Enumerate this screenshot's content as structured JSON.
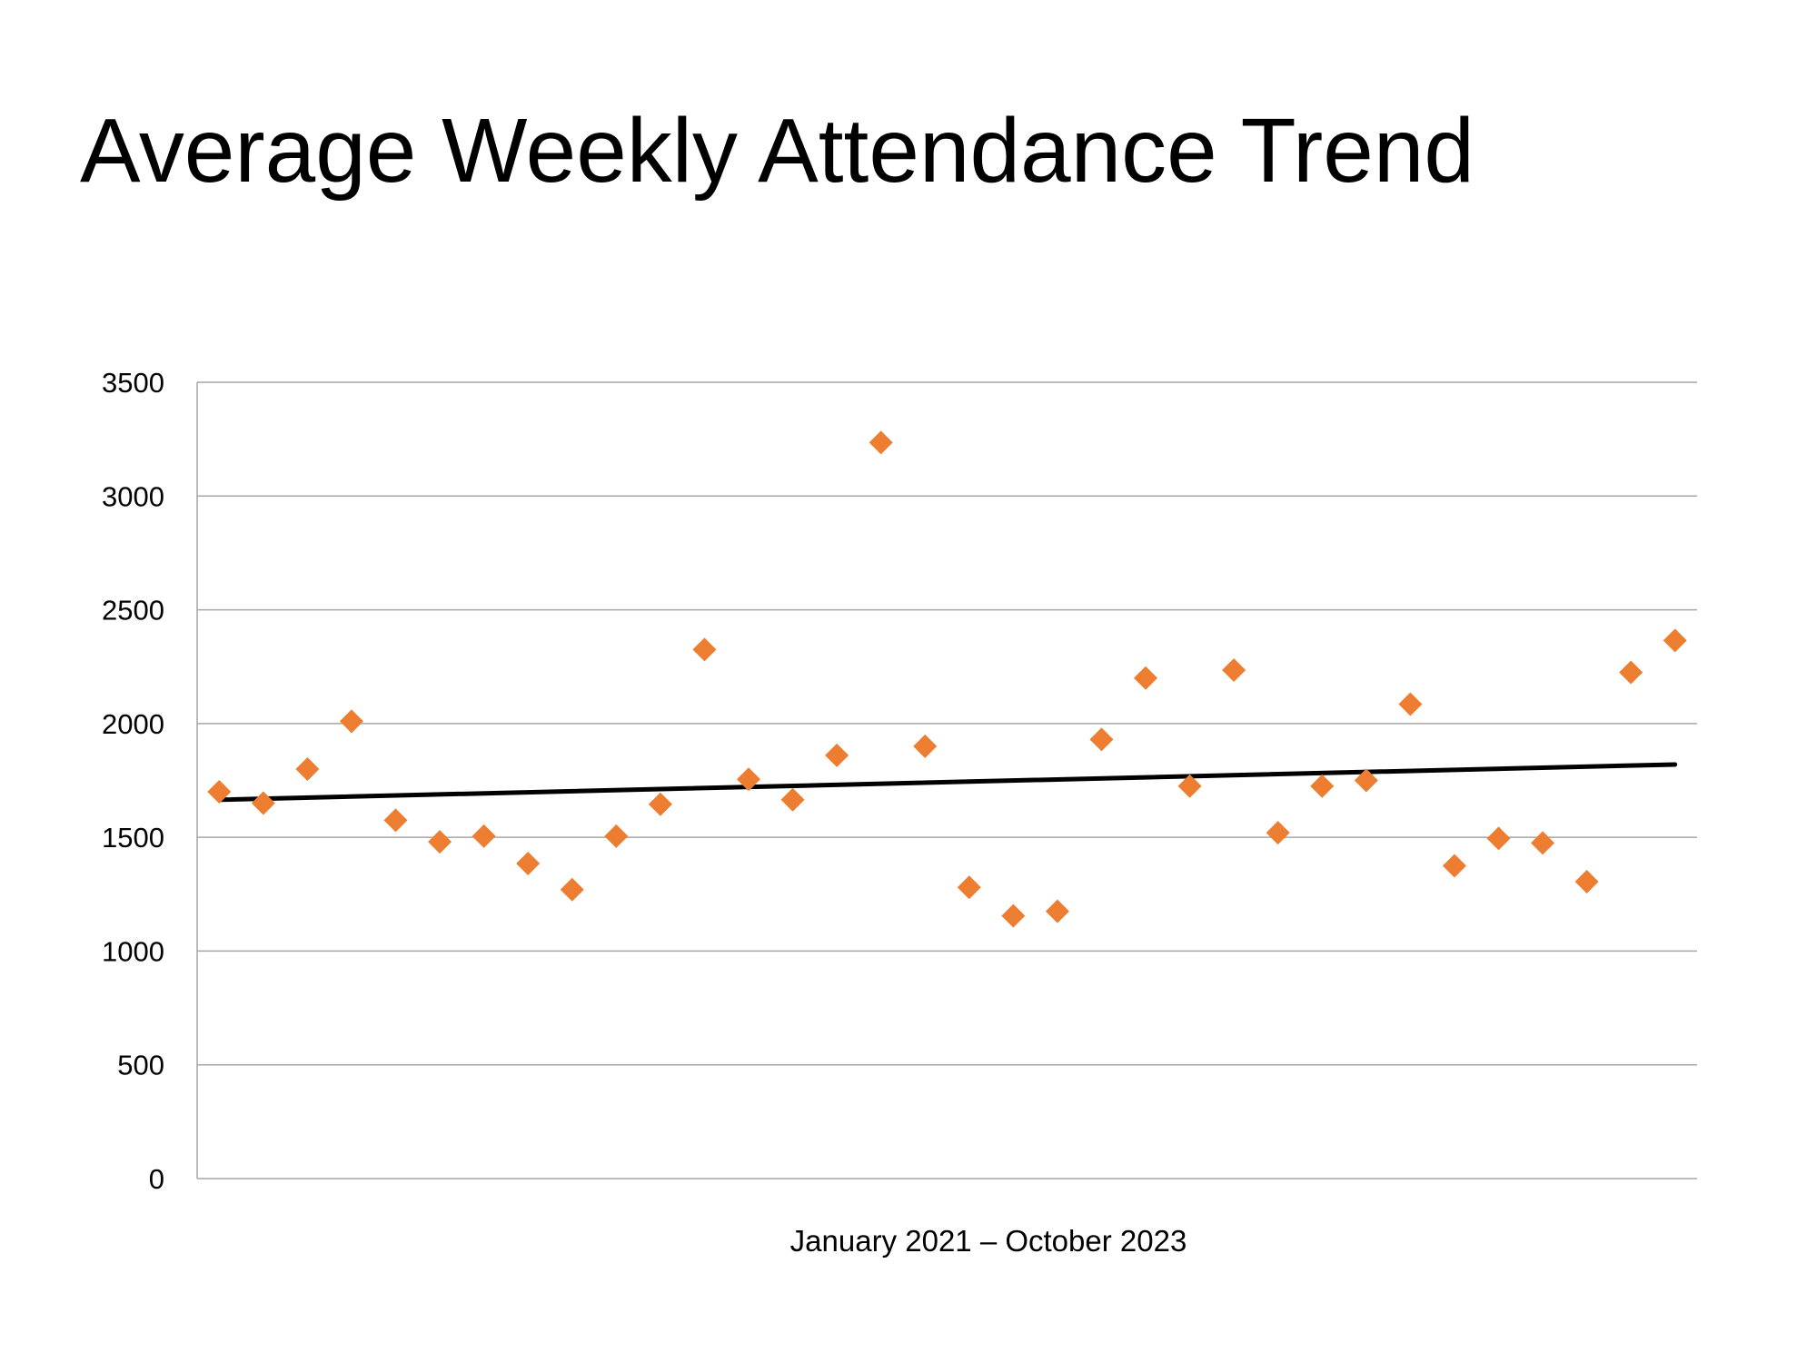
{
  "chart_data": {
    "type": "scatter",
    "title": "Average Weekly Attendance Trend",
    "xlabel": "January 2021 – October 2023",
    "ylabel": "",
    "ylim": [
      0,
      3500
    ],
    "xlim": [
      0.5,
      34.5
    ],
    "yticks": [
      "0",
      "500",
      "1000",
      "1500",
      "2000",
      "2500",
      "3000",
      "3500"
    ],
    "grid": true,
    "legend": "none",
    "series": [
      {
        "name": "Average Weekly Attendance",
        "marker": "diamond",
        "color": "#ED7D31",
        "x": [
          1,
          2,
          3,
          4,
          5,
          6,
          7,
          8,
          9,
          10,
          11,
          12,
          13,
          14,
          15,
          16,
          17,
          18,
          19,
          20,
          21,
          22,
          23,
          24,
          25,
          26,
          27,
          28,
          29,
          30,
          31,
          32,
          33,
          34
        ],
        "values": [
          1700,
          1650,
          1800,
          2010,
          1575,
          1480,
          1505,
          1385,
          1270,
          1505,
          1645,
          2325,
          1755,
          1665,
          1860,
          3235,
          1900,
          1280,
          1155,
          1175,
          1930,
          2200,
          1725,
          2235,
          1520,
          1725,
          1750,
          2085,
          1375,
          1495,
          1475,
          1305,
          2225,
          2365
        ]
      }
    ],
    "trendline": {
      "type": "linear",
      "color": "#000000",
      "start": [
        1,
        1665
      ],
      "end": [
        34,
        1820
      ]
    }
  }
}
